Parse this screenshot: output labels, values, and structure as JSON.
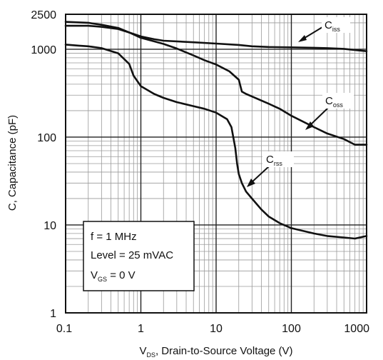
{
  "chart_data": {
    "type": "line",
    "x_scale": "log",
    "y_scale": "log",
    "xlim": [
      0.1,
      1000
    ],
    "ylim": [
      1,
      2500
    ],
    "grid": true,
    "xlabel": {
      "main": "V",
      "sub": "DS",
      "rest": ", Drain-to-Source Voltage (V)"
    },
    "ylabel": "C, Capacitance (pF)",
    "x_ticks": [
      {
        "value": 0.1,
        "label": "0.1"
      },
      {
        "value": 1,
        "label": "1"
      },
      {
        "value": 10,
        "label": "10"
      },
      {
        "value": 100,
        "label": "100"
      },
      {
        "value": 1000,
        "label": "1000"
      }
    ],
    "y_ticks": [
      {
        "value": 1,
        "label": "1"
      },
      {
        "value": 10,
        "label": "10"
      },
      {
        "value": 100,
        "label": "100"
      },
      {
        "value": 1000,
        "label": "1000"
      },
      {
        "value": 2500,
        "label": "2500"
      }
    ],
    "series": [
      {
        "key": "ciss",
        "name": {
          "main": "C",
          "sub": "iss"
        },
        "points": [
          [
            0.1,
            2050
          ],
          [
            0.2,
            2000
          ],
          [
            0.3,
            1900
          ],
          [
            0.5,
            1750
          ],
          [
            0.7,
            1550
          ],
          [
            1,
            1400
          ],
          [
            1.5,
            1300
          ],
          [
            2,
            1250
          ],
          [
            5,
            1200
          ],
          [
            10,
            1160
          ],
          [
            20,
            1120
          ],
          [
            30,
            1080
          ],
          [
            50,
            1060
          ],
          [
            100,
            1050
          ],
          [
            200,
            1040
          ],
          [
            300,
            1030
          ],
          [
            500,
            1010
          ],
          [
            1000,
            950
          ]
        ]
      },
      {
        "key": "coss",
        "name": {
          "main": "C",
          "sub": "oss"
        },
        "points": [
          [
            0.1,
            1850
          ],
          [
            0.2,
            1850
          ],
          [
            0.3,
            1800
          ],
          [
            0.5,
            1700
          ],
          [
            0.7,
            1550
          ],
          [
            1,
            1350
          ],
          [
            1.5,
            1230
          ],
          [
            2,
            1150
          ],
          [
            3,
            1020
          ],
          [
            5,
            850
          ],
          [
            7,
            750
          ],
          [
            10,
            670
          ],
          [
            15,
            560
          ],
          [
            20,
            450
          ],
          [
            22,
            330
          ],
          [
            25,
            310
          ],
          [
            30,
            290
          ],
          [
            50,
            240
          ],
          [
            70,
            210
          ],
          [
            100,
            175
          ],
          [
            200,
            130
          ],
          [
            300,
            110
          ],
          [
            500,
            95
          ],
          [
            700,
            82
          ],
          [
            1000,
            82
          ]
        ]
      },
      {
        "key": "crss",
        "name": {
          "main": "C",
          "sub": "rss"
        },
        "points": [
          [
            0.1,
            1130
          ],
          [
            0.15,
            1100
          ],
          [
            0.2,
            1080
          ],
          [
            0.3,
            1030
          ],
          [
            0.5,
            900
          ],
          [
            0.7,
            680
          ],
          [
            0.8,
            500
          ],
          [
            1,
            380
          ],
          [
            1.5,
            310
          ],
          [
            2,
            280
          ],
          [
            3,
            250
          ],
          [
            5,
            225
          ],
          [
            7,
            210
          ],
          [
            10,
            190
          ],
          [
            14,
            160
          ],
          [
            16,
            130
          ],
          [
            18,
            75
          ],
          [
            19,
            50
          ],
          [
            20,
            38
          ],
          [
            22,
            30
          ],
          [
            25,
            24
          ],
          [
            30,
            20
          ],
          [
            40,
            15
          ],
          [
            50,
            12.5
          ],
          [
            70,
            10.5
          ],
          [
            100,
            9.2
          ],
          [
            200,
            8
          ],
          [
            300,
            7.5
          ],
          [
            500,
            7.2
          ],
          [
            700,
            7
          ],
          [
            1000,
            7.5
          ]
        ]
      }
    ],
    "annotation": {
      "line1": "f = 1 MHz",
      "line2": "Level = 25 mVAC",
      "line3": {
        "main": "V",
        "sub": "GS",
        "rest": " = 0 V"
      }
    }
  }
}
